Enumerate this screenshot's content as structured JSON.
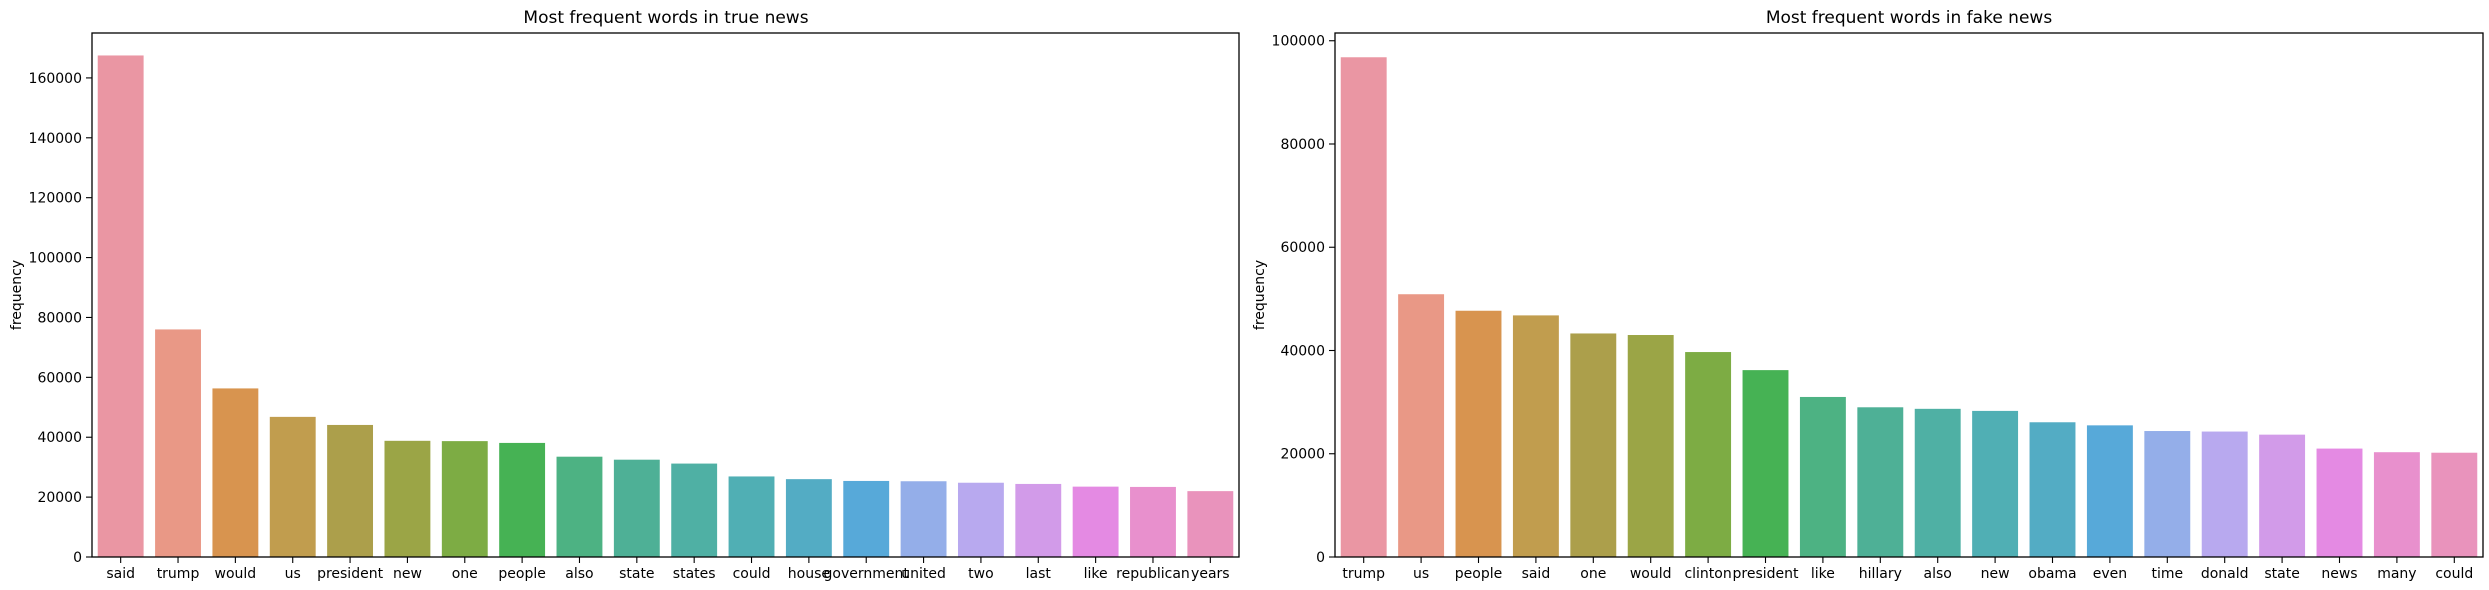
{
  "chart_data": [
    {
      "type": "bar",
      "title": "Most frequent words in true news",
      "xlabel": "",
      "ylabel": "frequency",
      "ylim": [
        0,
        175000
      ],
      "yticks": [
        0,
        20000,
        40000,
        60000,
        80000,
        100000,
        120000,
        140000,
        160000
      ],
      "ytick_labels": [
        "0",
        "20000",
        "40000",
        "60000",
        "80000",
        "100000",
        "120000",
        "140000",
        "160000"
      ],
      "grid": false,
      "categories": [
        "said",
        "trump",
        "would",
        "us",
        "president",
        "new",
        "one",
        "people",
        "also",
        "state",
        "states",
        "could",
        "house",
        "government",
        "united",
        "two",
        "last",
        "like",
        "republican",
        "years"
      ],
      "values": [
        167500,
        76000,
        56300,
        46800,
        44100,
        38800,
        38700,
        38100,
        33500,
        32500,
        31200,
        26900,
        26000,
        25400,
        25300,
        24800,
        24400,
        23500,
        23400,
        22000
      ],
      "colors": [
        "#ea96a3",
        "#e99886",
        "#d8944f",
        "#c19d4e",
        "#ac9f4b",
        "#9ba546",
        "#7dac44",
        "#46b254",
        "#4db283",
        "#4eb096",
        "#4fb0a4",
        "#50afb4",
        "#53acc4",
        "#57a9d9",
        "#94aee9",
        "#b8a9ef",
        "#d29be9",
        "#e48ae3",
        "#e890cd",
        "#e993bc"
      ]
    },
    {
      "type": "bar",
      "title": "Most frequent words in fake news",
      "xlabel": "",
      "ylabel": "frequency",
      "ylim": [
        0,
        101500
      ],
      "yticks": [
        0,
        20000,
        40000,
        60000,
        80000,
        100000
      ],
      "ytick_labels": [
        "0",
        "20000",
        "40000",
        "60000",
        "80000",
        "100000"
      ],
      "grid": false,
      "categories": [
        "trump",
        "us",
        "people",
        "said",
        "one",
        "would",
        "clinton",
        "president",
        "like",
        "hillary",
        "also",
        "new",
        "obama",
        "even",
        "time",
        "donald",
        "state",
        "news",
        "many",
        "could"
      ],
      "values": [
        96800,
        50900,
        47700,
        46800,
        43300,
        43000,
        39700,
        36200,
        31000,
        29000,
        28700,
        28300,
        26100,
        25500,
        24400,
        24300,
        23700,
        21000,
        20300,
        20200
      ],
      "colors": [
        "#ea96a3",
        "#e99886",
        "#d8944f",
        "#c19d4e",
        "#ac9f4b",
        "#9ba546",
        "#7dac44",
        "#46b254",
        "#4db283",
        "#4eb096",
        "#4fb0a4",
        "#50afb4",
        "#53acc4",
        "#57a9d9",
        "#94aee9",
        "#b8a9ef",
        "#d29be9",
        "#e48ae3",
        "#e890cd",
        "#e993bc"
      ]
    }
  ]
}
